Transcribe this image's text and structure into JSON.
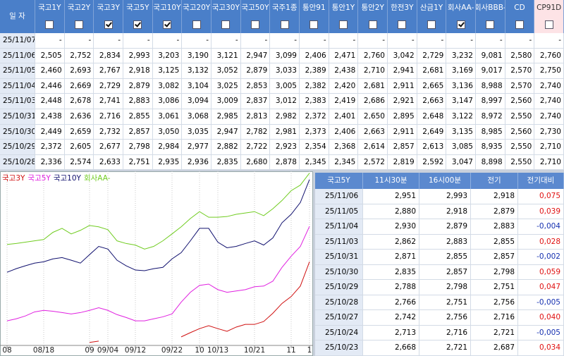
{
  "top_table": {
    "header": [
      "일 자",
      "국고1Y",
      "국고2Y",
      "국고3Y",
      "국고5Y",
      "국고10Y",
      "국고20Y",
      "국고30Y",
      "국고50Y",
      "국주1종",
      "통안91",
      "통안1Y",
      "통안2Y",
      "한전3Y",
      "산금1Y",
      "회사AA-",
      "회사BBB-",
      "CD",
      "CP91D"
    ],
    "checked": [
      false,
      false,
      true,
      true,
      true,
      false,
      false,
      false,
      false,
      false,
      false,
      false,
      false,
      false,
      true,
      false,
      false,
      false
    ],
    "highlighted_column": 17,
    "rows": [
      [
        "25/11/07",
        "-",
        "-",
        "-",
        "-",
        "-",
        "-",
        "-",
        "-",
        "-",
        "-",
        "-",
        "-",
        "-",
        "-",
        "-",
        "-",
        "-",
        "-"
      ],
      [
        "25/11/06",
        "2,505",
        "2,752",
        "2,834",
        "2,993",
        "3,203",
        "3,190",
        "3,121",
        "2,947",
        "3,099",
        "2,406",
        "2,471",
        "2,760",
        "3,042",
        "2,729",
        "3,232",
        "9,081",
        "2,580",
        "2,760"
      ],
      [
        "25/11/05",
        "2,460",
        "2,693",
        "2,767",
        "2,918",
        "3,125",
        "3,132",
        "3,052",
        "2,879",
        "3,033",
        "2,389",
        "2,438",
        "2,710",
        "2,941",
        "2,681",
        "3,169",
        "9,017",
        "2,570",
        "2,750"
      ],
      [
        "25/11/04",
        "2,446",
        "2,669",
        "2,729",
        "2,879",
        "3,082",
        "3,104",
        "3,025",
        "2,853",
        "3,005",
        "2,382",
        "2,420",
        "2,681",
        "2,911",
        "2,665",
        "3,136",
        "8,988",
        "2,570",
        "2,740"
      ],
      [
        "25/11/03",
        "2,448",
        "2,678",
        "2,741",
        "2,883",
        "3,086",
        "3,094",
        "3,009",
        "2,837",
        "3,012",
        "2,383",
        "2,419",
        "2,686",
        "2,921",
        "2,663",
        "3,147",
        "8,997",
        "2,560",
        "2,740"
      ],
      [
        "25/10/31",
        "2,438",
        "2,636",
        "2,716",
        "2,855",
        "3,061",
        "3,068",
        "2,985",
        "2,813",
        "2,982",
        "2,372",
        "2,401",
        "2,650",
        "2,895",
        "2,648",
        "3,122",
        "8,972",
        "2,550",
        "2,740"
      ],
      [
        "25/10/30",
        "2,449",
        "2,659",
        "2,732",
        "2,857",
        "3,050",
        "3,035",
        "2,947",
        "2,782",
        "2,981",
        "2,373",
        "2,406",
        "2,663",
        "2,911",
        "2,649",
        "3,135",
        "8,985",
        "2,560",
        "2,730"
      ],
      [
        "25/10/29",
        "2,372",
        "2,605",
        "2,677",
        "2,798",
        "2,984",
        "2,977",
        "2,882",
        "2,722",
        "2,923",
        "2,354",
        "2,368",
        "2,614",
        "2,857",
        "2,613",
        "3,085",
        "8,935",
        "2,550",
        "2,710"
      ],
      [
        "25/10/28",
        "2,336",
        "2,574",
        "2,633",
        "2,751",
        "2,935",
        "2,936",
        "2,835",
        "2,680",
        "2,878",
        "2,345",
        "2,345",
        "2,572",
        "2,819",
        "2,592",
        "3,047",
        "8,898",
        "2,550",
        "2,710"
      ]
    ]
  },
  "chart_data": {
    "type": "line",
    "categories": [
      "08",
      null,
      null,
      null,
      "08/18",
      null,
      null,
      null,
      null,
      "09",
      null,
      "09/04",
      null,
      null,
      "09/12",
      null,
      null,
      null,
      "09/22",
      null,
      null,
      "10",
      null,
      "10/13",
      null,
      null,
      null,
      "10/21",
      null,
      null,
      null,
      "11",
      null,
      "1"
    ],
    "ylim": [
      2.465,
      3.24
    ],
    "grid": true,
    "series": [
      {
        "name": "국고3Y",
        "color": "#d01010",
        "values": [
          null,
          null,
          null,
          null,
          null,
          null,
          null,
          null,
          null,
          2.472,
          2.478,
          null,
          null,
          null,
          null,
          null,
          null,
          null,
          null,
          2.497,
          2.516,
          2.534,
          2.547,
          2.534,
          2.522,
          2.541,
          2.553,
          2.553,
          2.566,
          2.603,
          2.647,
          2.678,
          2.725,
          2.834
        ]
      },
      {
        "name": "국고5Y",
        "color": "#e020e0",
        "values": [
          2.569,
          2.578,
          2.591,
          2.609,
          2.616,
          2.612,
          2.606,
          2.6,
          2.606,
          2.616,
          2.628,
          2.616,
          2.597,
          2.584,
          2.569,
          2.569,
          2.578,
          2.587,
          2.6,
          2.653,
          2.697,
          2.728,
          2.734,
          2.709,
          2.697,
          2.703,
          2.709,
          2.722,
          2.725,
          2.747,
          2.809,
          2.859,
          2.903,
          2.993
        ]
      },
      {
        "name": "국고10Y",
        "color": "#10106e",
        "values": [
          2.787,
          2.803,
          2.816,
          2.828,
          2.834,
          2.847,
          2.853,
          2.841,
          2.828,
          2.866,
          2.903,
          2.891,
          2.841,
          2.816,
          2.797,
          2.794,
          2.803,
          2.809,
          2.847,
          2.875,
          2.928,
          2.984,
          2.984,
          2.922,
          2.897,
          2.903,
          2.916,
          2.928,
          2.909,
          2.941,
          3.009,
          3.047,
          3.1,
          3.203
        ]
      },
      {
        "name": "회사AA-",
        "color": "#70cc20",
        "values": [
          2.912,
          2.916,
          2.922,
          2.928,
          2.934,
          2.966,
          2.984,
          2.959,
          2.975,
          2.997,
          2.991,
          2.978,
          2.928,
          2.916,
          2.909,
          2.891,
          2.903,
          2.928,
          2.959,
          2.991,
          3.028,
          3.059,
          3.034,
          3.034,
          3.037,
          3.047,
          3.053,
          3.059,
          3.041,
          3.072,
          3.109,
          3.153,
          3.178,
          3.232
        ]
      }
    ]
  },
  "side_table": {
    "header": [
      "국고5Y",
      "11시30분",
      "16시00분",
      "전기",
      "전기대비"
    ],
    "rows": [
      [
        "25/11/06",
        "2,951",
        "2,993",
        "2,918",
        "0,075"
      ],
      [
        "25/11/05",
        "2,880",
        "2,918",
        "2,879",
        "0,039"
      ],
      [
        "25/11/04",
        "2,930",
        "2,879",
        "2,883",
        "-0,004"
      ],
      [
        "25/11/03",
        "2,862",
        "2,883",
        "2,855",
        "0,028"
      ],
      [
        "25/10/31",
        "2,871",
        "2,855",
        "2,857",
        "-0,002"
      ],
      [
        "25/10/30",
        "2,835",
        "2,857",
        "2,798",
        "0,059"
      ],
      [
        "25/10/29",
        "2,788",
        "2,798",
        "2,751",
        "0,047"
      ],
      [
        "25/10/28",
        "2,766",
        "2,751",
        "2,756",
        "-0,005"
      ],
      [
        "25/10/27",
        "2,742",
        "2,756",
        "2,716",
        "0,040"
      ],
      [
        "25/10/24",
        "2,713",
        "2,716",
        "2,721",
        "-0,005"
      ],
      [
        "25/10/23",
        "2,668",
        "2,721",
        "2,687",
        "0,034"
      ]
    ]
  }
}
